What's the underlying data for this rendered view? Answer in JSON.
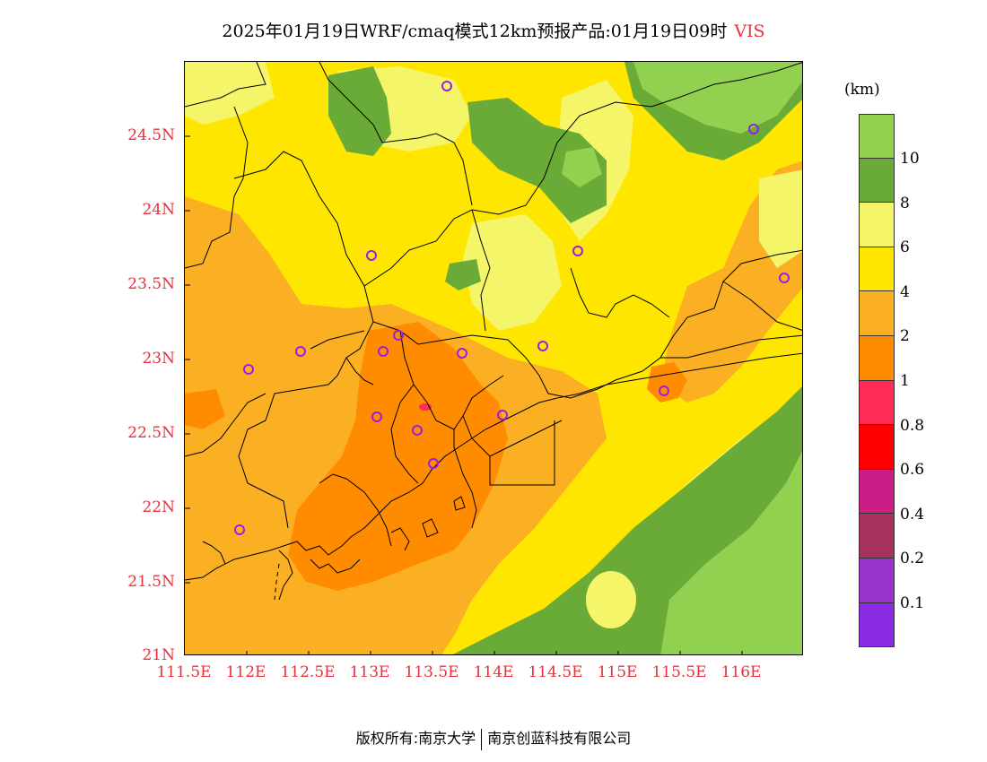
{
  "title": {
    "text": "2025年01月19日WRF/cmaq模式12km预报产品:01月19日09时",
    "variable": "VIS"
  },
  "axes": {
    "lat_labels": [
      "24.5N",
      "24N",
      "23.5N",
      "23N",
      "22.5N",
      "22N",
      "21.5N",
      "21N"
    ],
    "lon_labels": [
      "111.5E",
      "112E",
      "112.5E",
      "113E",
      "113.5E",
      "114E",
      "114.5E",
      "115E",
      "115.5E",
      "116E"
    ]
  },
  "legend": {
    "unit": "(km)",
    "tick_labels": [
      "10",
      "8",
      "6",
      "4",
      "2",
      "1",
      "0.8",
      "0.6",
      "0.4",
      "0.2",
      "0.1"
    ],
    "swatch_colors": [
      "#92d050",
      "#6aab38",
      "#f5f56a",
      "#ffe600",
      "#fbb024",
      "#ff8c00",
      "#ff2d55",
      "#ff0000",
      "#cc1d87",
      "#a8325f",
      "#9933cc",
      "#8a2be2"
    ]
  },
  "map": {
    "field_colors": {
      "vis_10_plus": "#92d050",
      "vis_8_10": "#6aab38",
      "vis_6_8": "#f5f56a",
      "vis_4_6": "#ffe600",
      "vis_2_4": "#fbb024",
      "vis_1_2": "#ff8c00",
      "vis_0_8_1": "#ff2d55",
      "station_marker": "#9b1de0"
    }
  },
  "footer": {
    "copyright": "版权所有:南京大学",
    "company": "南京创蓝科技有限公司"
  }
}
